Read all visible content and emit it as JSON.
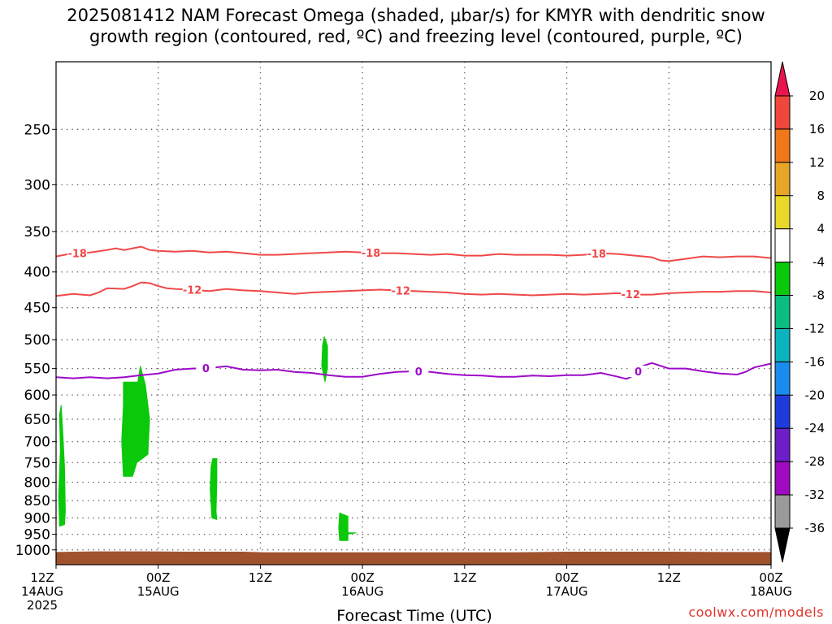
{
  "title": "2025081412 NAM Forecast Omega (shaded, μbar/s) for KMYR with dendritic snow\ngrowth region (contoured, red, ºC) and freezing level (contoured, purple, ºC)",
  "credit": "coolwx.com/models",
  "chart_data": {
    "type": "area",
    "title": "2025081412 NAM Forecast Omega (shaded, μbar/s) for KMYR with dendritic snow growth region (contoured, red, ºC) and freezing level (contoured, purple, ºC)",
    "xlabel": "Forecast Time (UTC)",
    "ylabel": "",
    "x_unit": "forecast hours from 2025-08-14 12Z",
    "xlim": [
      0,
      84
    ],
    "ylim": [
      1050,
      200
    ],
    "y_scale": "log-pressure (hPa)",
    "x_ticks": [
      {
        "x": 0,
        "line1": "12Z",
        "line2": "14AUG",
        "line3": "2025"
      },
      {
        "x": 12,
        "line1": "00Z",
        "line2": "15AUG",
        "line3": ""
      },
      {
        "x": 24,
        "line1": "12Z",
        "line2": "",
        "line3": ""
      },
      {
        "x": 36,
        "line1": "00Z",
        "line2": "16AUG",
        "line3": ""
      },
      {
        "x": 48,
        "line1": "12Z",
        "line2": "",
        "line3": ""
      },
      {
        "x": 60,
        "line1": "00Z",
        "line2": "17AUG",
        "line3": ""
      },
      {
        "x": 72,
        "line1": "12Z",
        "line2": "",
        "line3": ""
      },
      {
        "x": 84,
        "line1": "00Z",
        "line2": "18AUG",
        "line3": ""
      }
    ],
    "y_ticks": [
      250,
      300,
      350,
      400,
      450,
      500,
      550,
      600,
      650,
      700,
      750,
      800,
      850,
      900,
      950,
      1000
    ],
    "grid": true,
    "colorbar": {
      "labels": [
        "20",
        "16",
        "12",
        "8",
        "4",
        "-4",
        "-8",
        "-12",
        "-16",
        "-20",
        "-24",
        "-28",
        "-32",
        "-36"
      ],
      "colors": [
        "#e8144d",
        "#f0463c",
        "#f07818",
        "#e8a628",
        "#e8d82a",
        "#ffffff",
        "#0ac80a",
        "#0abe82",
        "#0ab4be",
        "#1a8cf0",
        "#1e3cdc",
        "#6e1ec8",
        "#a00ac0",
        "#9a9a9a",
        "#000000"
      ]
    },
    "series": [
      {
        "name": "-18",
        "kind": "contour",
        "color": "#f04848",
        "label_at": [
          2.5,
          37,
          63.5
        ],
        "points": [
          [
            0,
            380
          ],
          [
            2,
            376
          ],
          [
            4,
            375
          ],
          [
            6,
            372
          ],
          [
            7,
            370
          ],
          [
            8,
            372
          ],
          [
            9,
            370
          ],
          [
            10,
            368
          ],
          [
            11,
            372
          ],
          [
            12,
            373
          ],
          [
            14,
            374
          ],
          [
            16,
            373
          ],
          [
            18,
            375
          ],
          [
            20,
            374
          ],
          [
            22,
            376
          ],
          [
            24,
            378
          ],
          [
            26,
            378
          ],
          [
            28,
            377
          ],
          [
            30,
            376
          ],
          [
            32,
            375
          ],
          [
            34,
            374
          ],
          [
            36,
            375
          ],
          [
            38,
            376
          ],
          [
            40,
            376
          ],
          [
            42,
            377
          ],
          [
            44,
            378
          ],
          [
            46,
            377
          ],
          [
            48,
            379
          ],
          [
            50,
            379
          ],
          [
            52,
            377
          ],
          [
            54,
            378
          ],
          [
            56,
            378
          ],
          [
            58,
            378
          ],
          [
            60,
            379
          ],
          [
            62,
            378
          ],
          [
            64,
            376
          ],
          [
            66,
            377
          ],
          [
            68,
            379
          ],
          [
            70,
            381
          ],
          [
            71,
            385
          ],
          [
            72,
            386
          ],
          [
            74,
            383
          ],
          [
            76,
            380
          ],
          [
            78,
            381
          ],
          [
            80,
            380
          ],
          [
            82,
            380
          ],
          [
            84,
            382
          ]
        ]
      },
      {
        "name": "-12",
        "kind": "contour",
        "color": "#f04848",
        "label_at": [
          16,
          40.5,
          67.5
        ],
        "points": [
          [
            0,
            433
          ],
          [
            2,
            430
          ],
          [
            4,
            432
          ],
          [
            5,
            428
          ],
          [
            6,
            422
          ],
          [
            8,
            423
          ],
          [
            9,
            419
          ],
          [
            10,
            414
          ],
          [
            11,
            415
          ],
          [
            12,
            419
          ],
          [
            13,
            422
          ],
          [
            14,
            423
          ],
          [
            16,
            424
          ],
          [
            18,
            426
          ],
          [
            20,
            423
          ],
          [
            22,
            425
          ],
          [
            24,
            426
          ],
          [
            26,
            428
          ],
          [
            28,
            430
          ],
          [
            30,
            428
          ],
          [
            32,
            427
          ],
          [
            34,
            426
          ],
          [
            36,
            425
          ],
          [
            38,
            424
          ],
          [
            40,
            425
          ],
          [
            42,
            426
          ],
          [
            44,
            427
          ],
          [
            46,
            428
          ],
          [
            48,
            430
          ],
          [
            50,
            431
          ],
          [
            52,
            430
          ],
          [
            54,
            431
          ],
          [
            56,
            432
          ],
          [
            58,
            431
          ],
          [
            60,
            430
          ],
          [
            62,
            431
          ],
          [
            64,
            430
          ],
          [
            66,
            429
          ],
          [
            68,
            431
          ],
          [
            70,
            431
          ],
          [
            72,
            429
          ],
          [
            74,
            428
          ],
          [
            76,
            427
          ],
          [
            78,
            427
          ],
          [
            80,
            426
          ],
          [
            82,
            426
          ],
          [
            84,
            428
          ]
        ]
      },
      {
        "name": "0",
        "kind": "contour",
        "color": "#9d0ac9",
        "label_at": [
          17.6,
          42.6,
          68.4
        ],
        "points": [
          [
            0,
            566
          ],
          [
            2,
            568
          ],
          [
            4,
            566
          ],
          [
            6,
            568
          ],
          [
            8,
            566
          ],
          [
            10,
            562
          ],
          [
            12,
            559
          ],
          [
            14,
            552
          ],
          [
            16,
            550
          ],
          [
            18,
            549
          ],
          [
            20,
            546
          ],
          [
            22,
            552
          ],
          [
            24,
            553
          ],
          [
            26,
            552
          ],
          [
            28,
            556
          ],
          [
            30,
            558
          ],
          [
            32,
            562
          ],
          [
            34,
            565
          ],
          [
            36,
            565
          ],
          [
            38,
            560
          ],
          [
            40,
            556
          ],
          [
            42,
            555
          ],
          [
            44,
            556
          ],
          [
            46,
            560
          ],
          [
            48,
            562
          ],
          [
            50,
            563
          ],
          [
            52,
            565
          ],
          [
            54,
            565
          ],
          [
            56,
            563
          ],
          [
            58,
            564
          ],
          [
            60,
            562
          ],
          [
            62,
            562
          ],
          [
            64,
            558
          ],
          [
            66,
            565
          ],
          [
            67,
            569
          ],
          [
            68,
            562
          ],
          [
            69,
            545
          ],
          [
            70,
            540
          ],
          [
            72,
            550
          ],
          [
            74,
            550
          ],
          [
            76,
            555
          ],
          [
            78,
            559
          ],
          [
            80,
            561
          ],
          [
            81,
            556
          ],
          [
            82,
            548
          ],
          [
            84,
            541
          ]
        ]
      },
      {
        "name": "omega -4 to -8",
        "kind": "shade",
        "color": "#0ac80a",
        "points": [
          [
            0.6,
            620
          ],
          [
            0.8,
            680
          ],
          [
            1.0,
            760
          ],
          [
            1.1,
            880
          ],
          [
            1.0,
            920
          ],
          [
            0.4,
            925
          ],
          [
            0.3,
            840
          ],
          [
            0.5,
            720
          ],
          [
            0.4,
            640
          ]
        ]
      },
      {
        "name": "omega -4 to -8",
        "kind": "shade",
        "color": "#0ac80a",
        "points": [
          [
            7.9,
            575
          ],
          [
            9.6,
            575
          ],
          [
            9.9,
            545
          ],
          [
            10.5,
            580
          ],
          [
            11.0,
            650
          ],
          [
            10.8,
            730
          ],
          [
            9.5,
            750
          ],
          [
            9.0,
            785
          ],
          [
            7.9,
            785
          ],
          [
            7.7,
            700
          ],
          [
            7.9,
            620
          ]
        ]
      },
      {
        "name": "omega -4 to -8",
        "kind": "shade",
        "color": "#0ac80a",
        "points": [
          [
            18.4,
            740
          ],
          [
            18.9,
            740
          ],
          [
            18.9,
            800
          ],
          [
            18.8,
            880
          ],
          [
            18.9,
            905
          ],
          [
            18.3,
            900
          ],
          [
            18.1,
            820
          ],
          [
            18.2,
            760
          ]
        ]
      },
      {
        "name": "omega -4 to -8",
        "kind": "shade",
        "color": "#0ac80a",
        "points": [
          [
            31.5,
            495
          ],
          [
            31.9,
            510
          ],
          [
            31.9,
            550
          ],
          [
            31.6,
            575
          ],
          [
            31.2,
            545
          ],
          [
            31.3,
            510
          ]
        ]
      },
      {
        "name": "omega -4 to -8",
        "kind": "shade",
        "color": "#0ac80a",
        "points": [
          [
            33.3,
            885
          ],
          [
            34.3,
            895
          ],
          [
            34.3,
            945
          ],
          [
            35.3,
            945
          ],
          [
            34.3,
            950
          ],
          [
            34.3,
            970
          ],
          [
            33.3,
            970
          ],
          [
            33.2,
            930
          ]
        ]
      },
      {
        "name": "terrain",
        "kind": "ground",
        "color": "#a0522d",
        "points": [
          [
            0,
            1007
          ],
          [
            4.5,
            1005
          ],
          [
            11,
            1005
          ],
          [
            15.5,
            1006
          ],
          [
            22,
            1006
          ],
          [
            24.5,
            1008
          ],
          [
            54,
            1008
          ],
          [
            60,
            1006
          ],
          [
            72,
            1006
          ],
          [
            80,
            1007
          ],
          [
            84,
            1007
          ]
        ]
      }
    ]
  }
}
